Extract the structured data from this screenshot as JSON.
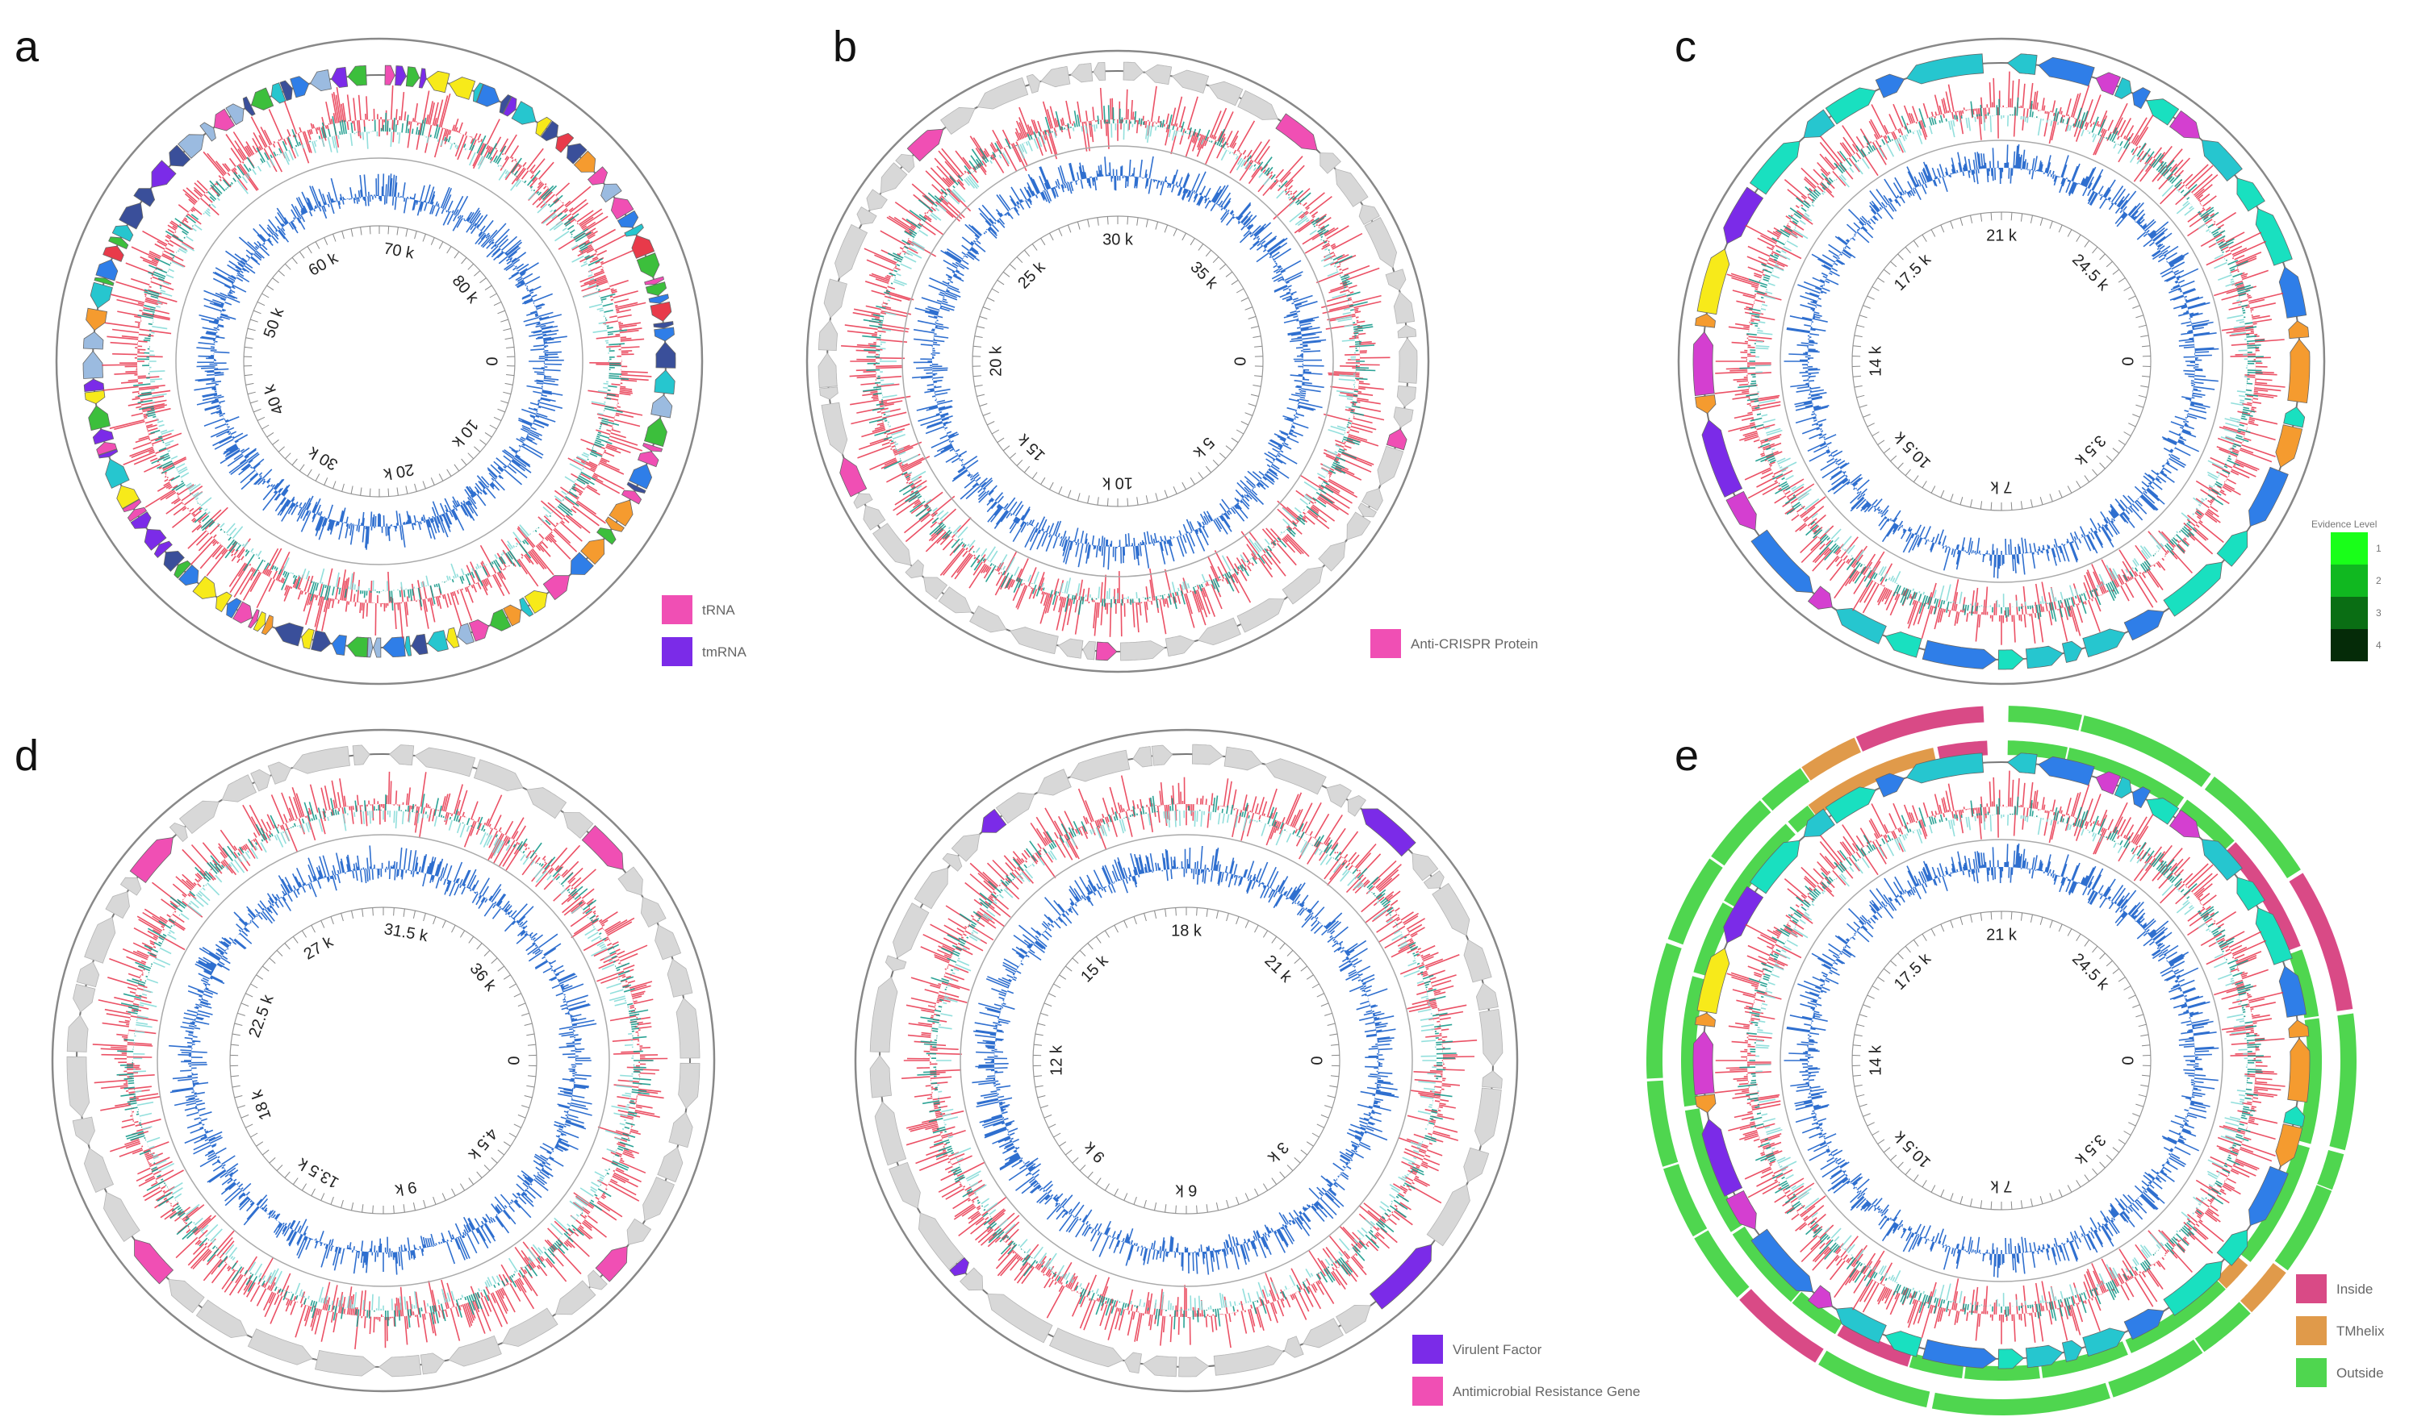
{
  "colors": {
    "gc_content": "#e8334a",
    "gc_skew_teal": "#14998a",
    "gc_skew_light": "#86dcd8",
    "coverage_blue": "#2f6fcf",
    "backbone": "#888888",
    "grey_gene": "#d8d8d8"
  },
  "panels": [
    {
      "id": "a",
      "letter": "a",
      "ticks": [
        "0",
        "10 k",
        "20 k",
        "30 k",
        "40 k",
        "50 k",
        "60 k",
        "70 k",
        "80 k"
      ],
      "legend": [
        {
          "label": "tRNA",
          "color": "#f04fb4"
        },
        {
          "label": "tmRNA",
          "color": "#7b2be8"
        }
      ]
    },
    {
      "id": "b",
      "letter": "b",
      "ticks": [
        "0",
        "5 k",
        "10 k",
        "15 k",
        "20 k",
        "25 k",
        "30 k",
        "35 k"
      ],
      "legend": [
        {
          "label": "Anti-CRISPR Protein",
          "color": "#f04fb4"
        }
      ]
    },
    {
      "id": "c",
      "letter": "c",
      "ticks": [
        "0",
        "3.5 k",
        "7 k",
        "10.5 k",
        "14 k",
        "17.5 k",
        "21 k",
        "24.5 k"
      ],
      "legend_title": "Evidence Level",
      "evidence_levels": [
        {
          "label": "1",
          "color": "#19ff19"
        },
        {
          "label": "2",
          "color": "#10b820"
        },
        {
          "label": "3",
          "color": "#0a6e14"
        },
        {
          "label": "4",
          "color": "#052b08"
        }
      ]
    },
    {
      "id": "d1",
      "letter": "d",
      "ticks": [
        "0",
        "4.5 k",
        "9 k",
        "13.5 k",
        "18 k",
        "22.5 k",
        "27 k",
        "31.5 k",
        "36 k"
      ]
    },
    {
      "id": "d2",
      "letter": "",
      "ticks": [
        "0",
        "3 k",
        "6 k",
        "9 k",
        "12 k",
        "15 k",
        "18 k",
        "21 k"
      ],
      "legend": [
        {
          "label": "Virulent Factor",
          "color": "#7b2be8"
        },
        {
          "label": "Antimicrobial Resistance Gene",
          "color": "#f04fb4"
        }
      ]
    },
    {
      "id": "e",
      "letter": "e",
      "ticks": [
        "0",
        "3.5 k",
        "7 k",
        "10.5 k",
        "14 k",
        "17.5 k",
        "21 k",
        "24.5 k"
      ],
      "legend": [
        {
          "label": "Inside",
          "color": "#d94a86"
        },
        {
          "label": "TMhelix",
          "color": "#e09a4a"
        },
        {
          "label": "Outside",
          "color": "#4fd64f"
        }
      ]
    }
  ]
}
